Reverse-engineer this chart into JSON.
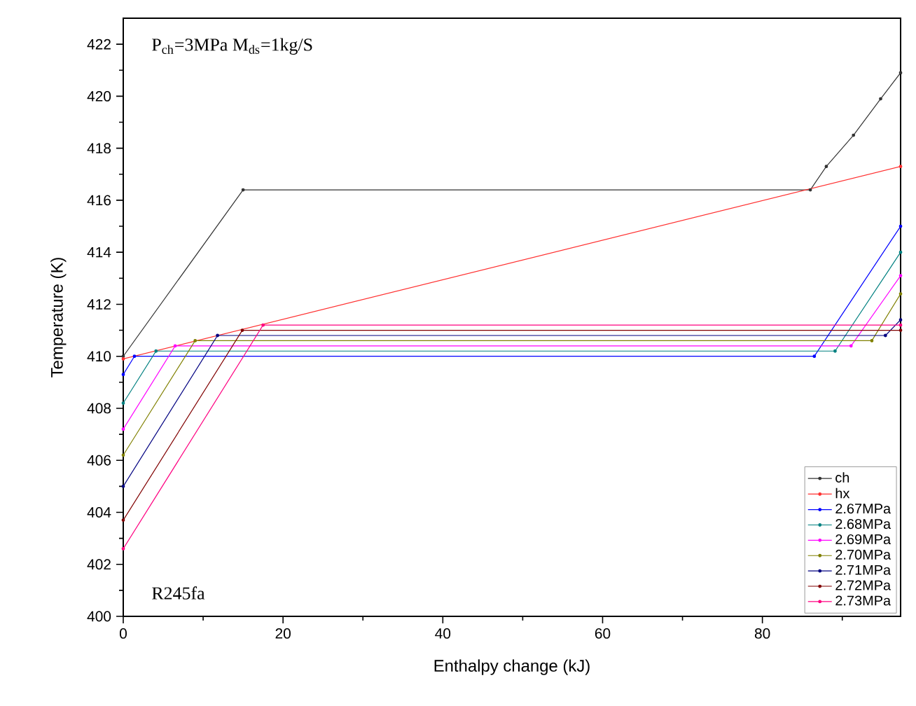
{
  "chart_data": {
    "type": "line",
    "xlabel": "Enthalpy change (kJ)",
    "ylabel": "Temperature (K)",
    "annotations": [
      "P$_{ch}$=3MPa M$_{ds}$=1kg/S",
      "R245fa"
    ],
    "xlim": [
      0,
      97.3
    ],
    "ylim": [
      400,
      423
    ],
    "xticks": [
      0,
      {
        "value": 10,
        "label": null
      },
      20,
      {
        "value": 30,
        "label": null
      },
      40,
      {
        "value": 50,
        "label": null
      },
      60,
      {
        "value": 70,
        "label": null
      },
      80,
      {
        "value": 90,
        "label": null
      }
    ],
    "yticks": [
      400,
      {
        "value": 401,
        "label": null
      },
      402,
      {
        "value": 403,
        "label": null
      },
      404,
      {
        "value": 405,
        "label": null
      },
      406,
      {
        "value": 407,
        "label": null
      },
      408,
      {
        "value": 409,
        "label": null
      },
      410,
      {
        "value": 411,
        "label": null
      },
      412,
      {
        "value": 413,
        "label": null
      },
      414,
      {
        "value": 415,
        "label": null
      },
      416,
      {
        "value": 417,
        "label": null
      },
      418,
      {
        "value": 419,
        "label": null
      },
      420,
      {
        "value": 421,
        "label": null
      },
      422
    ],
    "grid": false,
    "legend": "bottom right",
    "marker": "circle",
    "line_style": "solid",
    "series": [
      {
        "name": "ch",
        "color": "#333333",
        "x": [
          0,
          15,
          86,
          88,
          91.4,
          94.8,
          97.3
        ],
        "values": [
          410,
          416.4,
          416.4,
          417.3,
          418.5,
          419.9,
          420.9
        ]
      },
      {
        "name": "hx",
        "color": "#ff3030",
        "x": [
          0,
          97.3
        ],
        "values": [
          409.9,
          417.3
        ]
      },
      {
        "name": "2.67MPa",
        "color": "#0000ff",
        "x": [
          0,
          1.4,
          86.5,
          97.3
        ],
        "values": [
          409.3,
          410.0,
          410.0,
          415.0
        ]
      },
      {
        "name": "2.68MPa",
        "color": "#008080",
        "x": [
          0,
          4.1,
          89.1,
          97.3
        ],
        "values": [
          408.2,
          410.2,
          410.2,
          414.0
        ]
      },
      {
        "name": "2.69MPa",
        "color": "#ff00ff",
        "x": [
          0,
          6.5,
          91.1,
          97.3
        ],
        "values": [
          407.2,
          410.4,
          410.4,
          413.1
        ]
      },
      {
        "name": "2.70MPa",
        "color": "#808000",
        "x": [
          0,
          9.0,
          93.7,
          97.3
        ],
        "values": [
          406.2,
          410.6,
          410.6,
          412.4
        ]
      },
      {
        "name": "2.71MPa",
        "color": "#000080",
        "x": [
          0,
          11.8,
          95.4,
          97.3
        ],
        "values": [
          405.0,
          410.8,
          410.8,
          411.4
        ]
      },
      {
        "name": "2.72MPa",
        "color": "#800000",
        "x": [
          0,
          14.9,
          97.3
        ],
        "values": [
          403.7,
          411.0,
          411.0
        ]
      },
      {
        "name": "2.73MPa",
        "color": "#ff0080",
        "x": [
          0,
          17.5,
          97.3
        ],
        "values": [
          402.6,
          411.2,
          411.2
        ]
      }
    ]
  }
}
